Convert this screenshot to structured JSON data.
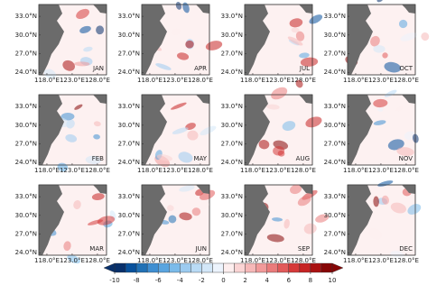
{
  "panels": [
    {
      "label": "JAN"
    },
    {
      "label": "APR"
    },
    {
      "label": "JUL"
    },
    {
      "label": "OCT"
    },
    {
      "label": "FEB"
    },
    {
      "label": "MAY"
    },
    {
      "label": "AUG"
    },
    {
      "label": "NOV"
    },
    {
      "label": "MAR"
    },
    {
      "label": "JUN"
    },
    {
      "label": "SEP"
    },
    {
      "label": "DEC"
    }
  ],
  "lat_lim": [
    23.6,
    34.9
  ],
  "lon_lim": [
    116.4,
    129.8
  ],
  "lat_ticks": [
    {
      "value": 24,
      "label": "24.0°N"
    },
    {
      "value": 27,
      "label": "27.0°N"
    },
    {
      "value": 30,
      "label": "30.0°N"
    },
    {
      "value": 33,
      "label": "33.0°N"
    }
  ],
  "lon_ticks": [
    {
      "value": 118,
      "label": "118.0°E"
    },
    {
      "value": 123,
      "label": "123.0°E"
    },
    {
      "value": 128,
      "label": "128.0°E"
    }
  ],
  "colorbar": {
    "lim": [
      -10,
      10
    ],
    "ticks": [
      -10,
      -8,
      -6,
      -4,
      -2,
      0,
      2,
      4,
      6,
      8,
      10
    ],
    "colors": [
      "#08306b",
      "#08519c",
      "#2171b5",
      "#3f8fd2",
      "#5aa5e0",
      "#7bbbea",
      "#9ccbf0",
      "#b9dbf5",
      "#d3e7f8",
      "#ecf3fc",
      "#fdeeee",
      "#fad4d4",
      "#f6b8b8",
      "#f19a9a",
      "#ea7b7b",
      "#e25a5a",
      "#d63a3a",
      "#c62323",
      "#aa1111",
      "#870606"
    ]
  }
}
